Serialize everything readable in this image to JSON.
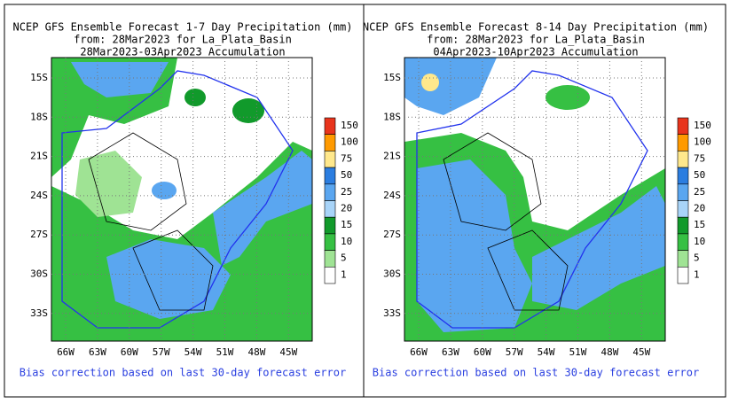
{
  "panels": [
    {
      "title_lines": [
        "NCEP GFS Ensemble Forecast 1-7 Day Precipitation (mm)",
        "from: 28Mar2023   for La_Plata_Basin",
        "28Mar2023-03Apr2023 Accumulation"
      ],
      "footer": "Bias correction based on last 30-day forecast error"
    },
    {
      "title_lines": [
        "NCEP GFS Ensemble Forecast 8-14 Day Precipitation (mm)",
        "from: 28Mar2023   for La_Plata_Basin",
        "04Apr2023-10Apr2023 Accumulation"
      ],
      "footer": "Bias correction based on last 30-day forecast error"
    }
  ],
  "lat_labels": [
    "15S",
    "18S",
    "21S",
    "24S",
    "27S",
    "30S",
    "33S"
  ],
  "lon_labels": [
    "66W",
    "63W",
    "60W",
    "57W",
    "54W",
    "51W",
    "48W",
    "45W"
  ],
  "colorbar": {
    "labels": [
      "150",
      "100",
      "75",
      "50",
      "25",
      "20",
      "15",
      "10",
      "5",
      "1"
    ],
    "colors": [
      "#e8341c",
      "#ff9a00",
      "#ffe88c",
      "#2b7de0",
      "#5aa6f0",
      "#a8d4f8",
      "#119a2b",
      "#36c043",
      "#9fe394",
      "#ffffff"
    ]
  }
}
